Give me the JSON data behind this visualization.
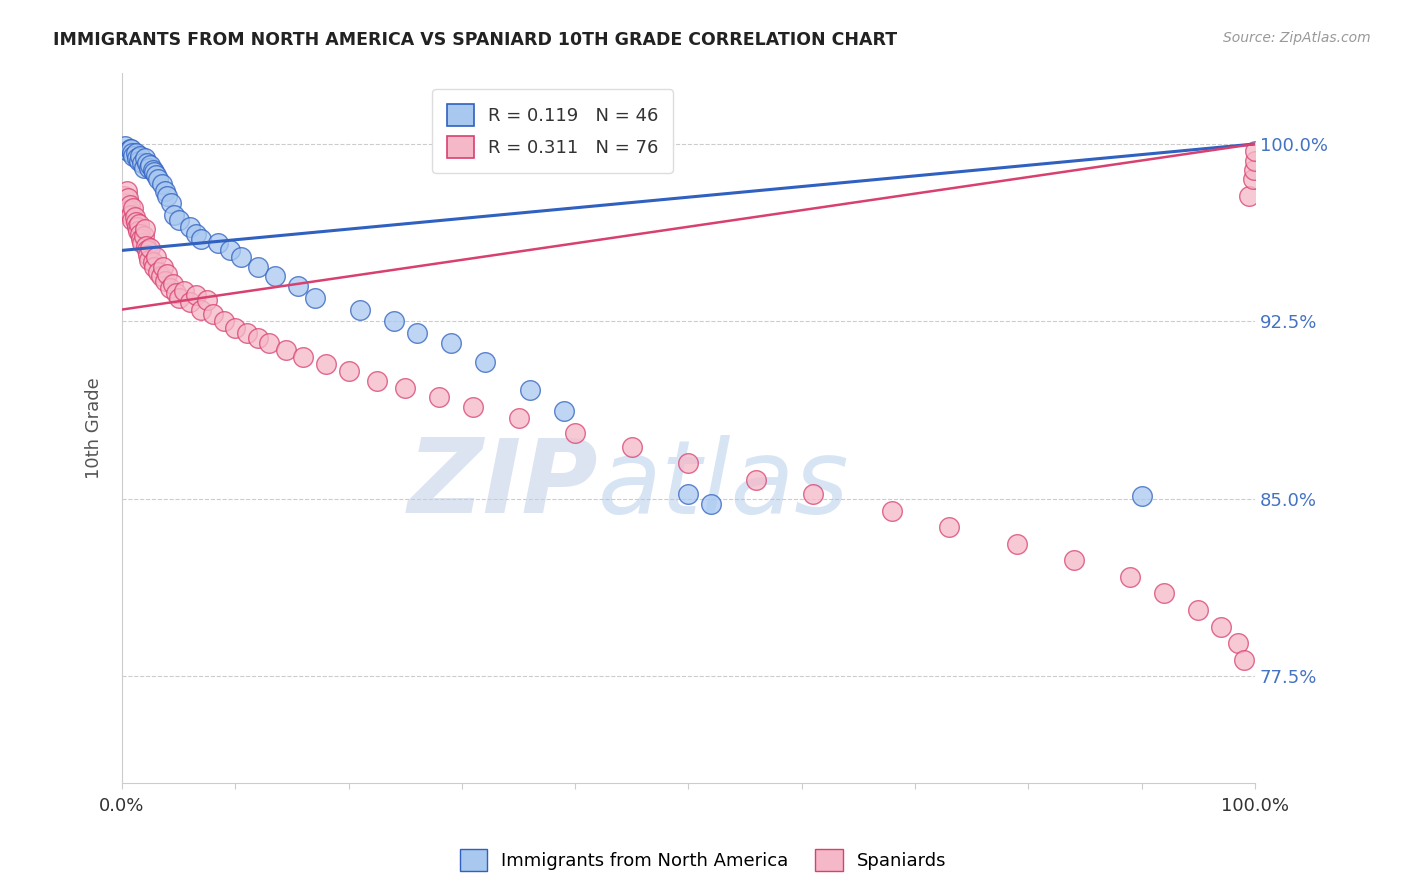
{
  "title": "IMMIGRANTS FROM NORTH AMERICA VS SPANIARD 10TH GRADE CORRELATION CHART",
  "source": "Source: ZipAtlas.com",
  "ylabel": "10th Grade",
  "ytick_labels": [
    "77.5%",
    "85.0%",
    "92.5%",
    "100.0%"
  ],
  "ytick_values": [
    0.775,
    0.85,
    0.925,
    1.0
  ],
  "xlim": [
    0.0,
    1.0
  ],
  "ylim": [
    0.73,
    1.03
  ],
  "blue_R": 0.119,
  "blue_N": 46,
  "pink_R": 0.311,
  "pink_N": 76,
  "blue_color": "#A8C8F0",
  "pink_color": "#F5B8C8",
  "blue_line_color": "#3060C0",
  "pink_line_color": "#D84070",
  "legend_label_blue": "Immigrants from North America",
  "legend_label_pink": "Spaniards",
  "watermark_zip": "ZIP",
  "watermark_atlas": "atlas",
  "blue_line_x0": 0.0,
  "blue_line_y0": 0.955,
  "blue_line_x1": 1.0,
  "blue_line_y1": 1.0,
  "pink_line_x0": 0.0,
  "pink_line_y0": 0.93,
  "pink_line_x1": 1.0,
  "pink_line_y1": 1.0,
  "blue_scatter_x": [
    0.003,
    0.005,
    0.007,
    0.008,
    0.009,
    0.01,
    0.012,
    0.013,
    0.015,
    0.016,
    0.018,
    0.019,
    0.02,
    0.022,
    0.024,
    0.025,
    0.027,
    0.028,
    0.03,
    0.032,
    0.035,
    0.038,
    0.04,
    0.043,
    0.046,
    0.05,
    0.06,
    0.065,
    0.07,
    0.085,
    0.095,
    0.105,
    0.12,
    0.135,
    0.155,
    0.17,
    0.21,
    0.24,
    0.26,
    0.29,
    0.32,
    0.36,
    0.39,
    0.5,
    0.52,
    0.9
  ],
  "blue_scatter_y": [
    0.999,
    0.997,
    0.998,
    0.998,
    0.996,
    0.995,
    0.996,
    0.994,
    0.993,
    0.995,
    0.992,
    0.99,
    0.994,
    0.992,
    0.99,
    0.991,
    0.989,
    0.988,
    0.987,
    0.985,
    0.983,
    0.98,
    0.978,
    0.975,
    0.97,
    0.968,
    0.965,
    0.962,
    0.96,
    0.958,
    0.955,
    0.952,
    0.948,
    0.944,
    0.94,
    0.935,
    0.93,
    0.925,
    0.92,
    0.916,
    0.908,
    0.896,
    0.887,
    0.852,
    0.848,
    0.851
  ],
  "pink_scatter_x": [
    0.002,
    0.003,
    0.004,
    0.005,
    0.006,
    0.007,
    0.008,
    0.009,
    0.01,
    0.011,
    0.012,
    0.013,
    0.014,
    0.015,
    0.016,
    0.017,
    0.018,
    0.019,
    0.02,
    0.021,
    0.022,
    0.023,
    0.024,
    0.025,
    0.027,
    0.028,
    0.03,
    0.032,
    0.034,
    0.036,
    0.038,
    0.04,
    0.042,
    0.045,
    0.048,
    0.05,
    0.055,
    0.06,
    0.065,
    0.07,
    0.075,
    0.08,
    0.09,
    0.1,
    0.11,
    0.12,
    0.13,
    0.145,
    0.16,
    0.18,
    0.2,
    0.225,
    0.25,
    0.28,
    0.31,
    0.35,
    0.4,
    0.45,
    0.5,
    0.56,
    0.61,
    0.68,
    0.73,
    0.79,
    0.84,
    0.89,
    0.92,
    0.95,
    0.97,
    0.985,
    0.99,
    0.995,
    0.998,
    0.999,
    1.0,
    1.0
  ],
  "pink_scatter_y": [
    0.978,
    0.975,
    0.98,
    0.977,
    0.972,
    0.974,
    0.97,
    0.968,
    0.973,
    0.969,
    0.967,
    0.965,
    0.963,
    0.966,
    0.962,
    0.96,
    0.958,
    0.961,
    0.964,
    0.957,
    0.955,
    0.953,
    0.951,
    0.956,
    0.95,
    0.948,
    0.952,
    0.946,
    0.944,
    0.948,
    0.942,
    0.945,
    0.939,
    0.941,
    0.937,
    0.935,
    0.938,
    0.933,
    0.936,
    0.93,
    0.934,
    0.928,
    0.925,
    0.922,
    0.92,
    0.918,
    0.916,
    0.913,
    0.91,
    0.907,
    0.904,
    0.9,
    0.897,
    0.893,
    0.889,
    0.884,
    0.878,
    0.872,
    0.865,
    0.858,
    0.852,
    0.845,
    0.838,
    0.831,
    0.824,
    0.817,
    0.81,
    0.803,
    0.796,
    0.789,
    0.782,
    0.978,
    0.985,
    0.989,
    0.993,
    0.997
  ]
}
